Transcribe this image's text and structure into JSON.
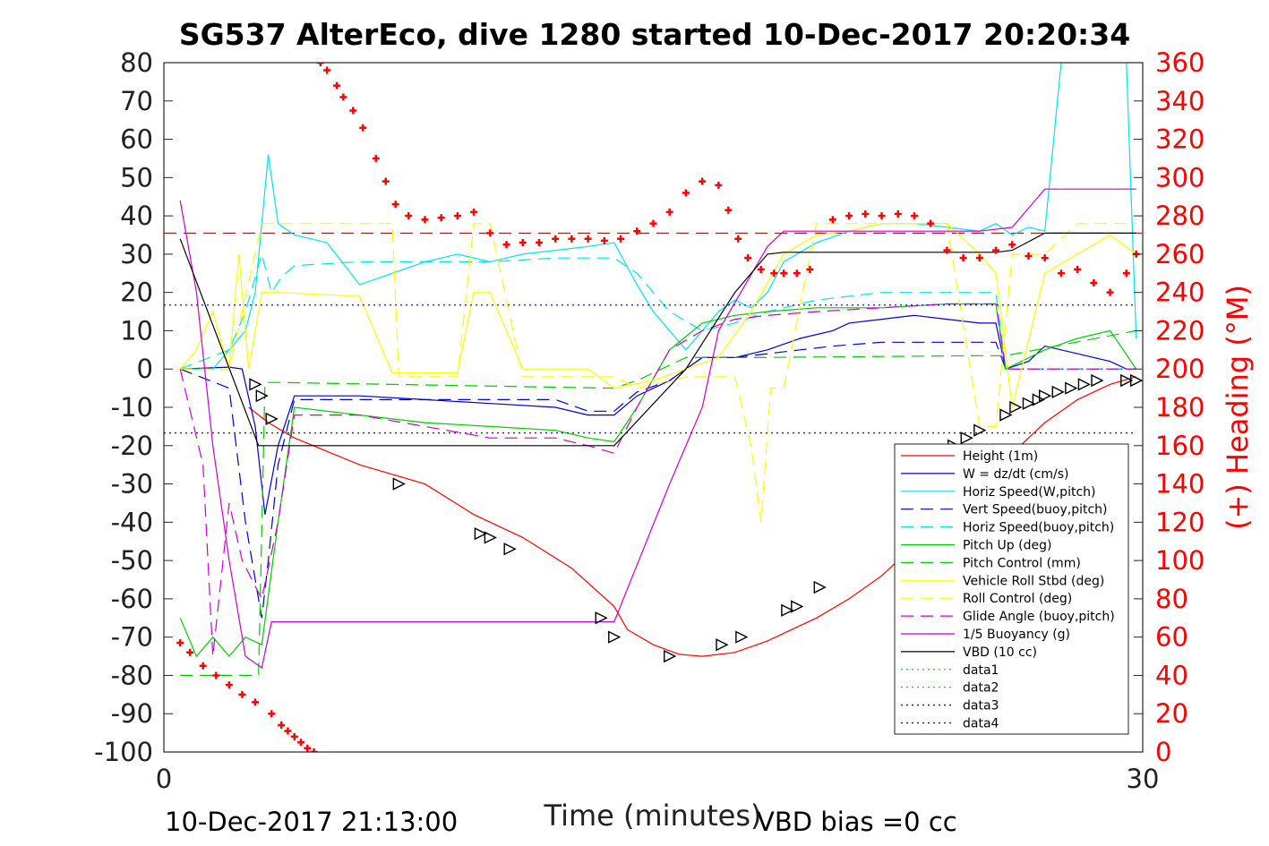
{
  "chart_data": {
    "type": "line",
    "title": "SG537 AlterEco, dive 1280 started 10-Dec-2017 20:20:34",
    "xlabel": "Time (minutes)",
    "ylabel_right": "(+) Heading (°M)",
    "xlim": [
      0,
      30
    ],
    "ylim": [
      -100,
      80
    ],
    "ylim_right": [
      0,
      360
    ],
    "x_ticks": [
      "0",
      "30"
    ],
    "y_ticks": [
      "80",
      "70",
      "60",
      "50",
      "40",
      "30",
      "20",
      "10",
      "0",
      "-10",
      "-20",
      "-30",
      "-40",
      "-50",
      "-60",
      "-70",
      "-80",
      "-90",
      "-100"
    ],
    "y_right_ticks": [
      "360",
      "340",
      "320",
      "300",
      "280",
      "260",
      "240",
      "220",
      "200",
      "180",
      "160",
      "140",
      "120",
      "100",
      "80",
      "60",
      "40",
      "20",
      "0"
    ],
    "footer_left": "10-Dec-2017 21:13:00",
    "footer_right": "VBD bias =0 cc",
    "legend_position": "bottom-right",
    "series": [
      {
        "name": "Height (1m)",
        "color": "#ff0000",
        "dash": "solid",
        "x": [
          2.6,
          3.2,
          4,
          6,
          8,
          9.5,
          11,
          12.5,
          13.8,
          14.2,
          15,
          15.8,
          16.5,
          17.5,
          18.5,
          20,
          21,
          22,
          23,
          24,
          25,
          26,
          27,
          28,
          29,
          29.8
        ],
        "y": [
          -10,
          -14,
          -18,
          -25,
          -30,
          -38,
          -44,
          -52,
          -62,
          -68,
          -72,
          -74.5,
          -75,
          -74,
          -71,
          -65,
          -60,
          -54,
          -46,
          -38,
          -30,
          -22,
          -14,
          -8,
          -4,
          -2
        ]
      },
      {
        "name": "W = dz/dt (cm/s)",
        "color": "#0000cc",
        "dash": "solid",
        "x": [
          0.5,
          2,
          2.4,
          2.8,
          3.1,
          3.5,
          4,
          6,
          8,
          10,
          12,
          13,
          13.8,
          14.5,
          15.5,
          16.5,
          17.5,
          18.5,
          19.5,
          20.5,
          21,
          22,
          23,
          24,
          25,
          25.5,
          25.8,
          26.5,
          27,
          28,
          29,
          29.5,
          29.8
        ],
        "y": [
          0,
          0.5,
          0,
          -15,
          -38,
          -20,
          -7,
          -7,
          -8,
          -9,
          -10,
          -12,
          -12,
          -7,
          -3,
          3,
          3,
          5,
          8,
          10,
          12,
          13,
          14,
          13,
          12,
          12,
          0,
          2,
          6,
          4,
          2,
          0,
          0
        ]
      },
      {
        "name": "Horiz Speed(W,pitch)",
        "color": "#00e5e5",
        "dash": "solid",
        "x": [
          0.5,
          1.5,
          2,
          2.5,
          2.8,
          3.2,
          3.5,
          4,
          5,
          6,
          7,
          8,
          9,
          10,
          11,
          12,
          13,
          13.8,
          14.5,
          15,
          15.5,
          16,
          16.5,
          17,
          17.5,
          18,
          18.5,
          19,
          20,
          21,
          22,
          23,
          24,
          25,
          25.5,
          26,
          26.5,
          27,
          27.5,
          28,
          28.5,
          29,
          29.5,
          29.8
        ],
        "y": [
          0,
          0,
          5,
          10,
          20,
          56,
          38,
          35,
          33,
          22,
          25,
          28,
          30,
          28,
          30,
          31,
          32,
          33,
          22,
          15,
          10,
          5,
          10,
          15,
          18,
          16,
          20,
          28,
          33,
          36,
          38,
          38,
          37,
          36,
          38,
          35,
          37,
          36,
          80,
          80,
          80,
          80,
          80,
          8
        ]
      },
      {
        "name": "Vert Speed(buoy,pitch)",
        "color": "#0000cc",
        "dash": "dashed",
        "x": [
          0.5,
          2,
          2.5,
          3,
          3.2,
          3.5,
          4,
          6,
          8,
          10,
          12,
          13,
          13.8,
          14.5,
          15.5,
          16.5,
          17.5,
          18.5,
          19.5,
          20.5,
          22,
          24,
          25,
          25.5,
          25.8,
          27,
          28,
          29,
          29.8
        ],
        "y": [
          0,
          -5,
          -40,
          -65,
          -50,
          -25,
          -8,
          -8,
          -8,
          -8,
          -8,
          -11,
          -11,
          -6,
          -3,
          3,
          3,
          4,
          5,
          6,
          7,
          7,
          7,
          7,
          0,
          0,
          0,
          0,
          0
        ]
      },
      {
        "name": "Horiz Speed(buoy,pitch)",
        "color": "#00e5e5",
        "dash": "dashed",
        "x": [
          0.5,
          2,
          2.5,
          3,
          3.3,
          3.6,
          4,
          6,
          8,
          10,
          12,
          13,
          13.8,
          14.5,
          15.5,
          16.5,
          17.5,
          18.5,
          20,
          22,
          24,
          25,
          25.5,
          25.8,
          27,
          28,
          29,
          29.8
        ],
        "y": [
          0,
          5,
          15,
          30,
          20,
          24,
          27,
          28,
          28,
          28,
          29,
          29,
          29,
          25,
          15,
          10,
          12,
          15,
          18,
          20,
          20,
          20,
          20,
          0,
          0,
          0,
          0,
          0
        ]
      },
      {
        "name": "Pitch Up (deg)",
        "color": "#00cc00",
        "dash": "solid",
        "x": [
          0.5,
          1,
          1.5,
          2,
          2.5,
          3,
          3.5,
          4,
          6,
          8,
          10,
          12,
          13,
          13.8,
          14.5,
          15.5,
          16.5,
          17.5,
          18.5,
          20,
          22,
          24,
          25,
          25.5,
          25.8,
          27,
          28,
          29,
          29.8
        ],
        "y": [
          -65,
          -75,
          -70,
          -75,
          -70,
          -72,
          -40,
          -10,
          -12,
          -14,
          -15,
          -16,
          -18,
          -19,
          -10,
          5,
          12,
          14,
          15,
          16,
          16,
          17,
          17,
          17,
          0,
          5,
          8,
          10,
          0
        ]
      },
      {
        "name": "Pitch Control (mm)",
        "color": "#00cc00",
        "dash": "dashed",
        "x": [
          0.5,
          2.9,
          3.1,
          3.5,
          13.8,
          14.5,
          16,
          18,
          25,
          25.6,
          25.8,
          29.8
        ],
        "y": [
          -80,
          -80,
          -3.5,
          -3.5,
          -5,
          -3,
          3,
          3,
          3.5,
          3.5,
          3.5,
          10
        ]
      },
      {
        "name": "Vehicle Roll Stbd (deg)",
        "color": "#ffff00",
        "dash": "solid",
        "x": [
          0.5,
          1,
          1.5,
          2,
          2.3,
          2.6,
          3,
          3.5,
          6,
          7,
          7.2,
          9,
          9.5,
          10,
          11,
          11.5,
          12,
          13,
          13.8,
          15,
          16,
          17,
          18,
          19,
          20,
          21,
          22,
          23,
          24,
          25,
          25.5,
          26,
          27,
          28,
          29,
          29.8
        ],
        "y": [
          0,
          5,
          15,
          0,
          30,
          0,
          20,
          20,
          19,
          -1,
          -1,
          -1,
          20,
          20,
          0,
          0,
          0,
          0,
          -5,
          -3,
          0,
          3,
          15,
          30,
          35,
          36,
          38,
          38,
          38,
          30,
          25,
          -10,
          25,
          30,
          35,
          30
        ]
      },
      {
        "name": "Roll Control (deg)",
        "color": "#ffff00",
        "dash": "dashed",
        "x": [
          0.5,
          2,
          3,
          3.5,
          7,
          7.2,
          9,
          9.5,
          10,
          11,
          13.8,
          14.5,
          16,
          17.5,
          18,
          18.3,
          18.6,
          19,
          20,
          22,
          24,
          25,
          25.5,
          26,
          27,
          28,
          29,
          29.8
        ],
        "y": [
          0,
          0,
          38,
          38,
          38,
          -2,
          -2,
          38,
          38,
          -2,
          -2,
          -5,
          -2,
          -2,
          -20,
          -40,
          -5,
          -5,
          38,
          38,
          38,
          -15,
          -15,
          30,
          30,
          38,
          38,
          38
        ]
      },
      {
        "name": "Glide Angle (buoy,pitch)",
        "color": "#cc00cc",
        "dash": "dashed",
        "x": [
          0.5,
          1.2,
          1.5,
          2,
          2.4,
          3,
          3.5,
          4,
          6,
          8,
          10,
          12,
          13,
          13.8,
          14.5,
          15.5,
          16.5,
          17.5,
          18.5,
          20,
          22,
          24,
          25,
          25.5,
          25.8,
          27,
          28,
          29,
          29.8
        ],
        "y": [
          0,
          -25,
          -75,
          -35,
          -50,
          -60,
          -40,
          -12,
          -12,
          -15,
          -18,
          -18,
          -20,
          -22,
          -10,
          5,
          10,
          13,
          14,
          15,
          16,
          17,
          17,
          17,
          0,
          0,
          0,
          0,
          0
        ]
      },
      {
        "name": "1/5 Buoyancy (g)",
        "color": "#cc00cc",
        "dash": "solid",
        "x": [
          0.5,
          1,
          1.5,
          2,
          2.5,
          3,
          3.3,
          13.8,
          15.5,
          16.5,
          17,
          18.5,
          19,
          20,
          22,
          25,
          26,
          27,
          29.8
        ],
        "y": [
          44,
          20,
          -20,
          -50,
          -75,
          -78,
          -66,
          -66,
          -30,
          -10,
          10,
          32,
          36,
          36,
          36,
          36,
          37,
          47,
          47
        ]
      },
      {
        "name": "VBD (10 cc)",
        "color": "#000000",
        "dash": "solid",
        "x": [
          0.5,
          2.9,
          3.3,
          13.8,
          16,
          17.5,
          18.5,
          19,
          25.5,
          26,
          27,
          29.8
        ],
        "y": [
          34,
          -20,
          -20,
          -20,
          0,
          20,
          30,
          30.5,
          30.5,
          31,
          35.5,
          35.5
        ]
      },
      {
        "name": "data1",
        "color": "#00cc00",
        "dash": "dotted",
        "x": [],
        "y": []
      },
      {
        "name": "data2",
        "color": "#00cc00",
        "dash": "dotted",
        "x": [],
        "y": []
      },
      {
        "name": "data3",
        "color": "#000080",
        "dash": "dotted",
        "x": [
          0,
          29.8
        ],
        "y": [
          16.7,
          16.7
        ]
      },
      {
        "name": "data4",
        "color": "#000080",
        "dash": "dotted",
        "x": [
          0,
          29.8
        ],
        "y": [
          -16.7,
          -16.7
        ]
      }
    ],
    "reference_line": {
      "color": "#800000",
      "dash": "dashed",
      "y_right": 271
    },
    "heading_points": {
      "color": "#ff0000",
      "x": [
        0.5,
        0.8,
        1.2,
        1.6,
        2.0,
        2.4,
        2.8,
        3.3,
        3.6,
        3.8,
        4.0,
        4.2,
        4.4,
        4.6,
        4.8,
        5.0,
        5.3,
        5.5,
        5.8,
        6.1,
        6.5,
        6.8,
        7.1,
        7.5,
        8,
        8.5,
        9,
        9.5,
        10,
        10.5,
        11,
        11.5,
        12,
        12.5,
        13,
        13.5,
        14,
        14.5,
        15,
        15.5,
        16,
        16.5,
        17,
        17.3,
        17.6,
        17.9,
        18.3,
        18.7,
        19,
        19.4,
        19.8,
        20.5,
        21,
        21.5,
        22,
        22.5,
        23,
        23.5,
        24,
        24.5,
        25,
        25.5,
        26,
        26.5,
        27,
        27.5,
        28,
        28.5,
        29,
        29.5,
        29.8
      ],
      "y": [
        57,
        52,
        45,
        40,
        35,
        30,
        26,
        20,
        14,
        11,
        8,
        5,
        2,
        0,
        360,
        356,
        348,
        342,
        335,
        326,
        310,
        298,
        286,
        280,
        278,
        279,
        280,
        282,
        271,
        265,
        266,
        266,
        268,
        268,
        268,
        267,
        268,
        272,
        276,
        282,
        292,
        298,
        296,
        283,
        268,
        258,
        252,
        250,
        250,
        250,
        252,
        278,
        280,
        281,
        280,
        281,
        280,
        276,
        262,
        258,
        258,
        262,
        265,
        259,
        258,
        250,
        252,
        245,
        240,
        250,
        260
      ]
    },
    "markers": {
      "color": "#000000",
      "x": [
        2.8,
        3.0,
        3.3,
        7.2,
        9.7,
        10.0,
        10.6,
        13.4,
        13.8,
        15.5,
        17.1,
        17.7,
        19.1,
        19.4,
        20.1,
        24.2,
        24.6,
        25.0,
        25.8,
        26.1,
        26.5,
        26.8,
        27.0,
        27.4,
        27.8,
        28.2,
        28.6,
        29.5,
        29.8
      ],
      "y": [
        -4,
        -7,
        -13,
        -30,
        -43,
        -44,
        -47,
        -65,
        -70,
        -75,
        -72,
        -70,
        -63,
        -62,
        -57,
        -20,
        -18,
        -16,
        -12,
        -10,
        -9,
        -8,
        -7,
        -6,
        -5,
        -4,
        -3,
        -3,
        -3
      ]
    }
  }
}
